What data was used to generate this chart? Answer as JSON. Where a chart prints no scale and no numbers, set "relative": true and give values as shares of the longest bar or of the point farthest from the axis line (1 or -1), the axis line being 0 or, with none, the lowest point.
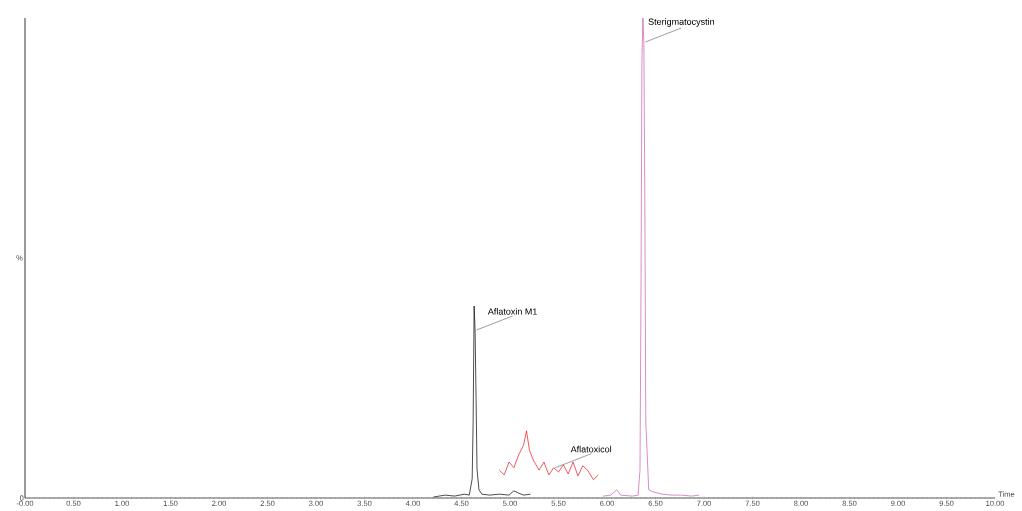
{
  "chart_data": {
    "type": "line",
    "relative": true,
    "xlabel": "Time",
    "ylabel": "%",
    "xlim": [
      0,
      10
    ],
    "xticks": [
      {
        "value": 0,
        "label": "-0.00"
      },
      {
        "value": 0.5,
        "label": "0.50"
      },
      {
        "value": 1,
        "label": "1.00"
      },
      {
        "value": 1.5,
        "label": "1.50"
      },
      {
        "value": 2,
        "label": "2.00"
      },
      {
        "value": 2.5,
        "label": "2.50"
      },
      {
        "value": 3,
        "label": "3.00"
      },
      {
        "value": 3.5,
        "label": "3.50"
      },
      {
        "value": 4,
        "label": "4.00"
      },
      {
        "value": 4.5,
        "label": "4.50"
      },
      {
        "value": 5,
        "label": "5.00"
      },
      {
        "value": 5.5,
        "label": "5.50"
      },
      {
        "value": 6,
        "label": "6.00"
      },
      {
        "value": 6.5,
        "label": "6.50"
      },
      {
        "value": 7,
        "label": "7.00"
      },
      {
        "value": 7.5,
        "label": "7.50"
      },
      {
        "value": 8,
        "label": "8.00"
      },
      {
        "value": 8.5,
        "label": "8.50"
      },
      {
        "value": 9,
        "label": "9.00"
      },
      {
        "value": 9.5,
        "label": "9.50"
      },
      {
        "value": 10,
        "label": "10.00"
      }
    ],
    "line_style": "solid",
    "series": [
      {
        "color": "#000000",
        "x": [
          4.21,
          4.33,
          4.43,
          4.53,
          4.58,
          4.61,
          4.62,
          4.63,
          4.64,
          4.65,
          4.66,
          4.68,
          4.71,
          4.79,
          4.89,
          4.99,
          5.04,
          5.09,
          5.14,
          5.21
        ],
        "values": [
          0.002,
          0.006,
          0.004,
          0.008,
          0.006,
          0.04,
          0.16,
          0.4,
          0.35,
          0.21,
          0.06,
          0.017,
          0.008,
          0.006,
          0.008,
          0.006,
          0.015,
          0.01,
          0.006,
          0.008
        ]
      },
      {
        "color": "#e8141c",
        "x": [
          4.89,
          4.94,
          4.99,
          5.04,
          5.09,
          5.14,
          5.17,
          5.2,
          5.24,
          5.3,
          5.35,
          5.4,
          5.45,
          5.5,
          5.55,
          5.6,
          5.65,
          5.7,
          5.75,
          5.8,
          5.86,
          5.91
        ],
        "values": [
          0.058,
          0.048,
          0.075,
          0.063,
          0.09,
          0.11,
          0.14,
          0.1,
          0.079,
          0.058,
          0.075,
          0.048,
          0.063,
          0.054,
          0.069,
          0.05,
          0.075,
          0.046,
          0.067,
          0.058,
          0.038,
          0.048
        ]
      },
      {
        "color": "#c65bb0",
        "x": [
          5.96,
          6.04,
          6.1,
          6.14,
          6.26,
          6.32,
          6.34,
          6.35,
          6.36,
          6.37,
          6.38,
          6.39,
          6.4,
          6.43,
          6.47,
          6.57,
          6.67,
          6.77,
          6.87,
          6.95
        ],
        "values": [
          0.004,
          0.006,
          0.017,
          0.006,
          0.004,
          0.006,
          0.058,
          0.41,
          0.91,
          1,
          0.95,
          0.62,
          0.16,
          0.017,
          0.013,
          0.008,
          0.006,
          0.006,
          0.004,
          0.006
        ]
      }
    ],
    "annotations": [
      {
        "text": "Aflatoxin M1",
        "x": 4.64,
        "y": 0.35
      },
      {
        "text": "Aflatoxicol",
        "x": 5.45,
        "y": 0.063
      },
      {
        "text": "Sterigmatocystin",
        "x": 6.38,
        "y": 0.95
      },
      "0"
    ]
  }
}
